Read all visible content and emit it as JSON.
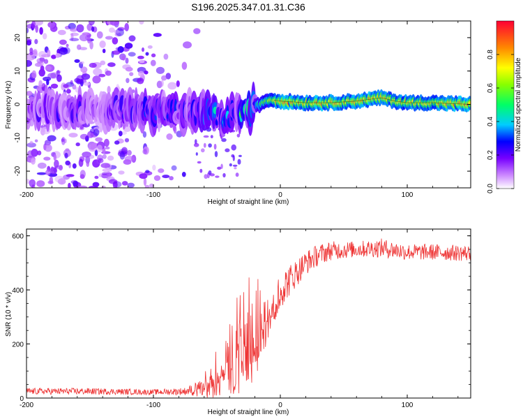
{
  "figure_title": "S196.2025.347.01.31.C36",
  "chart_data": [
    {
      "type": "heatmap",
      "title": "",
      "xlabel": "Height of straight line (km)",
      "ylabel": "Frequency (Hz)",
      "xlim": [
        -200,
        150
      ],
      "ylim": [
        -25,
        25
      ],
      "xticks": [
        -200,
        -100,
        0,
        100
      ],
      "xtick_labels": [
        "-200",
        "-100",
        "0",
        "100"
      ],
      "yticks": [
        -20,
        -10,
        0,
        10,
        20
      ],
      "ytick_labels": [
        "-20",
        "-10",
        "0",
        "10",
        "20"
      ],
      "colorbar": {
        "label": "Normalized spectral amplitude",
        "range": [
          0,
          1
        ],
        "ticks": [
          0.0,
          0.2,
          0.4,
          0.6,
          0.8
        ],
        "tick_labels": [
          "0.0",
          "0.2",
          "0.4",
          "0.6",
          "0.8"
        ],
        "colors": [
          "#ffffff",
          "#cc88ff",
          "#7700ff",
          "#0000ff",
          "#00ffff",
          "#00ff00",
          "#ffff00",
          "#ff8800",
          "#ff0000"
        ]
      },
      "ridge": {
        "description_points_x_km": [
          -200,
          -170,
          -140,
          -110,
          -80,
          -60,
          -40,
          -30,
          -20,
          -10,
          0,
          20,
          40,
          60,
          80,
          90,
          100,
          120,
          150
        ],
        "frequency_hz": [
          -1.5,
          -1.5,
          -2.0,
          -1.5,
          -2.0,
          -3.0,
          -4.0,
          -3.0,
          -1.0,
          1.5,
          1.0,
          0.5,
          0.5,
          1.0,
          2.0,
          1.0,
          0.5,
          0.5,
          0.0
        ],
        "amplitude": [
          0.2,
          0.25,
          0.2,
          0.3,
          0.3,
          0.35,
          0.3,
          0.4,
          0.5,
          0.6,
          0.8,
          0.75,
          0.8,
          0.75,
          0.8,
          0.7,
          0.75,
          0.75,
          0.8
        ]
      },
      "noise_region_x_km": [
        -200,
        -65
      ],
      "noise_amplitude": 0.12
    },
    {
      "type": "line",
      "title": "",
      "xlabel": "Height of straight line (km)",
      "ylabel": "SNR (10 * v/v)",
      "xlim": [
        -200,
        150
      ],
      "ylim": [
        0,
        625
      ],
      "xticks": [
        -200,
        -100,
        0,
        100
      ],
      "xtick_labels": [
        "-200",
        "-100",
        "0",
        "100"
      ],
      "yticks": [
        0,
        200,
        400,
        600
      ],
      "ytick_labels": [
        "0",
        "200",
        "400",
        "600"
      ],
      "series": [
        {
          "name": "SNR",
          "color": "#ee3333",
          "envelope_x_km": [
            -200,
            -150,
            -100,
            -75,
            -65,
            -55,
            -45,
            -40,
            -35,
            -30,
            -25,
            -20,
            -15,
            -10,
            -5,
            0,
            10,
            20,
            30,
            40,
            60,
            80,
            100,
            120,
            150
          ],
          "mean_y": [
            25,
            25,
            22,
            25,
            35,
            70,
            140,
            180,
            200,
            230,
            260,
            280,
            300,
            330,
            360,
            400,
            450,
            500,
            530,
            545,
            550,
            555,
            540,
            540,
            535
          ],
          "spread": [
            12,
            12,
            10,
            14,
            25,
            60,
            110,
            140,
            180,
            200,
            190,
            170,
            140,
            110,
            90,
            70,
            55,
            45,
            40,
            35,
            30,
            35,
            30,
            30,
            30
          ]
        }
      ]
    }
  ]
}
